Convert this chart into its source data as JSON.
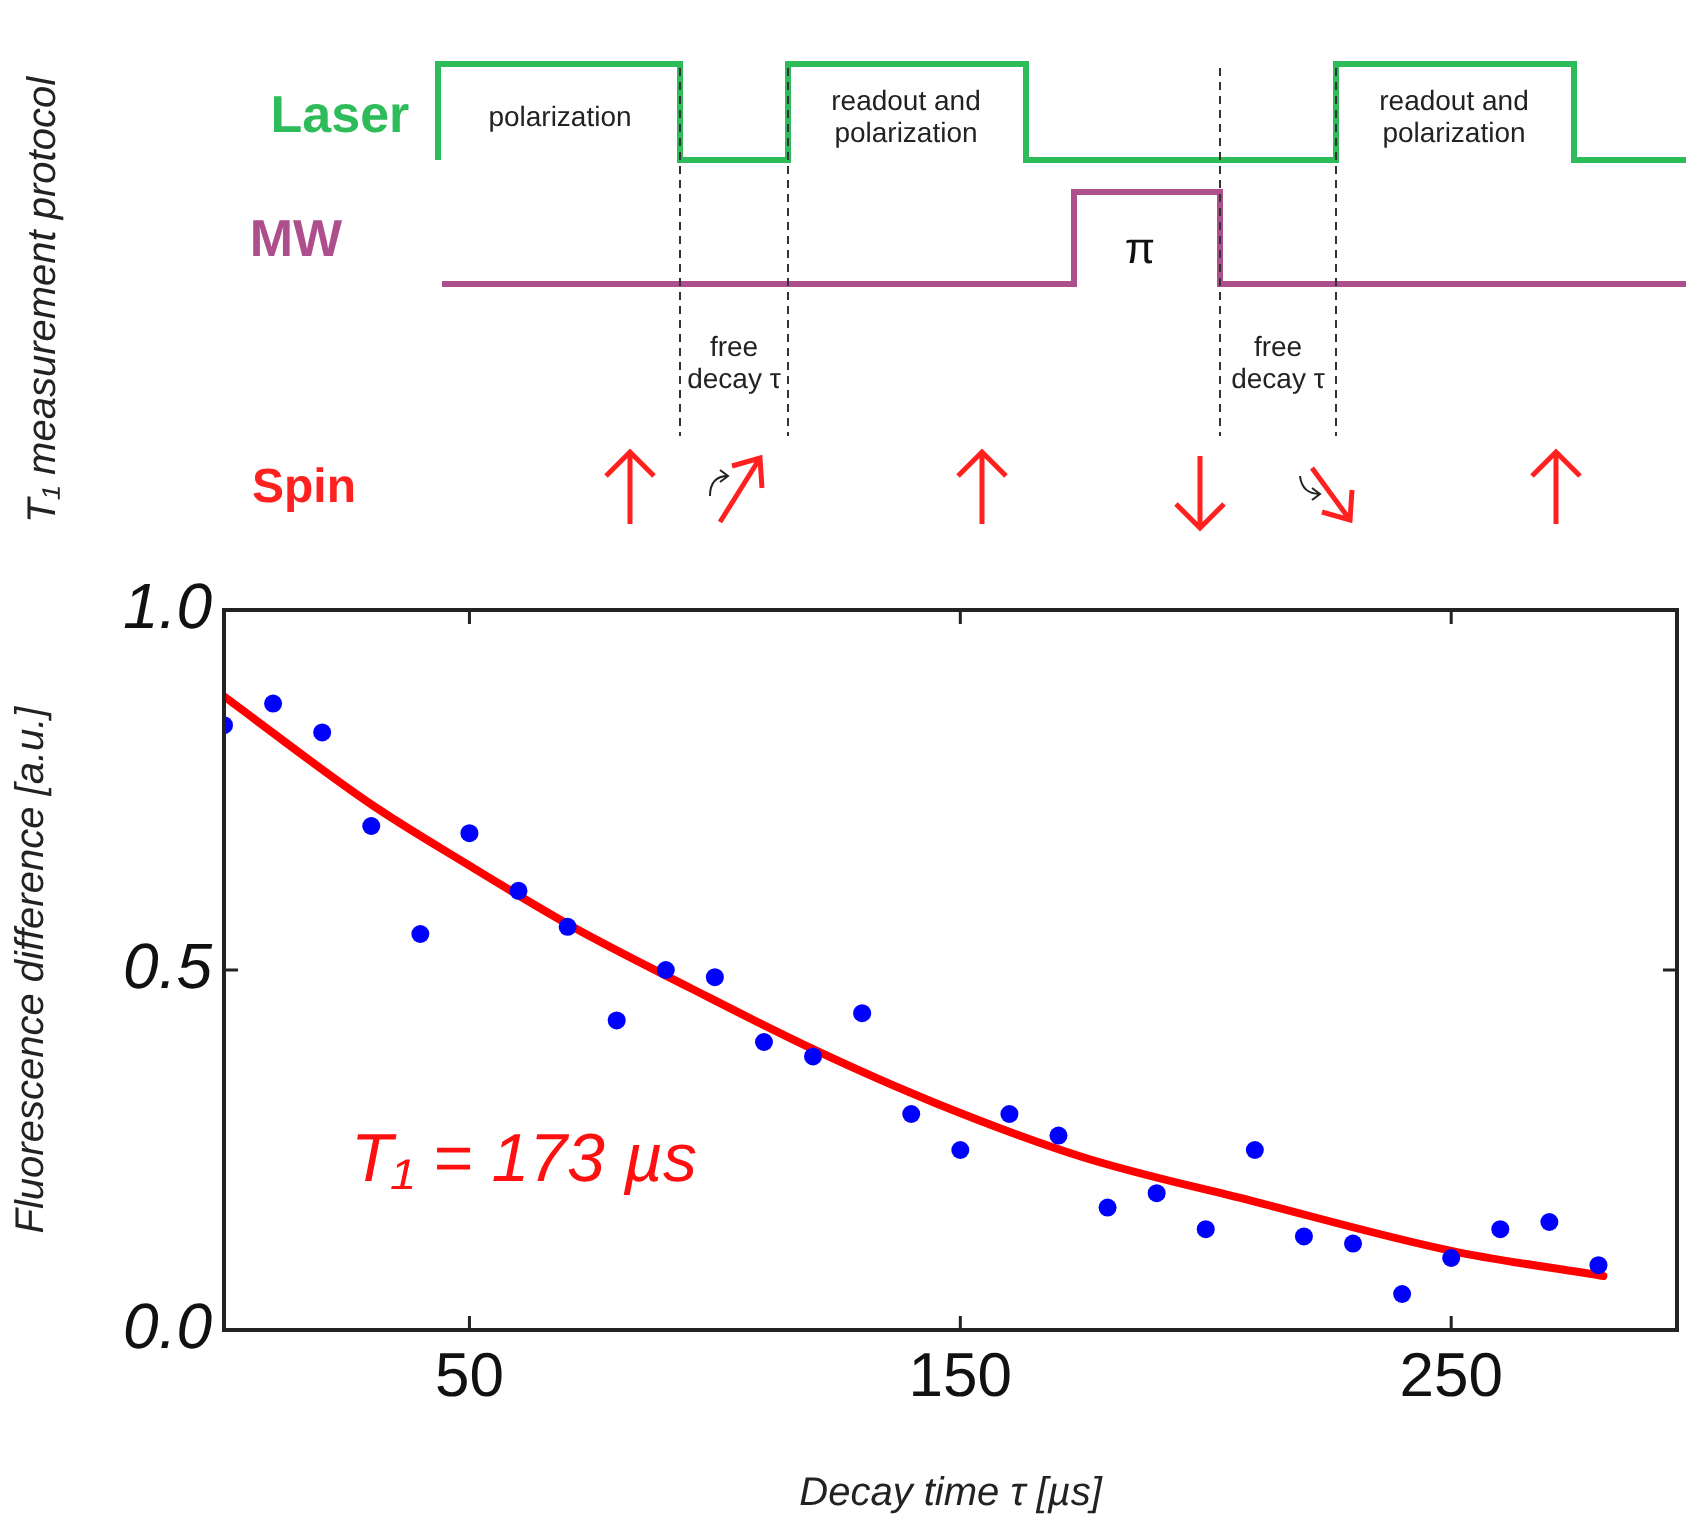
{
  "chart_data": {
    "type": "scatter",
    "xlabel": "Decay time τ [µs]",
    "ylabel": "Fluorescence difference [a.u.]",
    "xlim": [
      0,
      296
    ],
    "xticks": [
      50,
      150,
      250
    ],
    "ylim": [
      0,
      1
    ],
    "yticks": [
      {
        "value": 0,
        "label": "0.0"
      },
      {
        "value": 0.5,
        "label": "0.5"
      },
      {
        "value": 1,
        "label": "1.0"
      }
    ],
    "grid": false,
    "legend": false,
    "annotations": [
      "T₁ measurement protocol",
      "Laser",
      "polarization",
      "readout and polarization",
      "readout and polarization",
      "MW",
      "π",
      "free decay τ",
      "free decay τ",
      "Spin",
      "T₁ = 173 µs"
    ],
    "series": [
      {
        "color": "#0000ff",
        "marker": "circle",
        "x": [
          0,
          10,
          20,
          30,
          40,
          50,
          60,
          70,
          80,
          90,
          100,
          110,
          120,
          130,
          140,
          150,
          160,
          170,
          180,
          190,
          200,
          210,
          220,
          230,
          240,
          250,
          260,
          270,
          280
        ],
        "values": [
          0.84,
          0.87,
          0.83,
          0.7,
          0.55,
          0.69,
          0.61,
          0.56,
          0.43,
          0.5,
          0.49,
          0.4,
          0.38,
          0.44,
          0.3,
          0.25,
          0.3,
          0.27,
          0.17,
          0.19,
          0.14,
          0.25,
          0.13,
          0.12,
          0.05,
          0.1,
          0.14,
          0.15,
          0.09
        ]
      },
      {
        "type": "line",
        "color": "#ff0000",
        "marker": "none",
        "x": [
          0,
          30,
          50,
          71,
          95,
          120,
          145,
          175,
          209,
          250,
          281
        ],
        "values": [
          0.88,
          0.73,
          0.645,
          0.56,
          0.475,
          0.39,
          0.315,
          0.24,
          0.18,
          0.11,
          0.075
        ]
      }
    ]
  }
}
